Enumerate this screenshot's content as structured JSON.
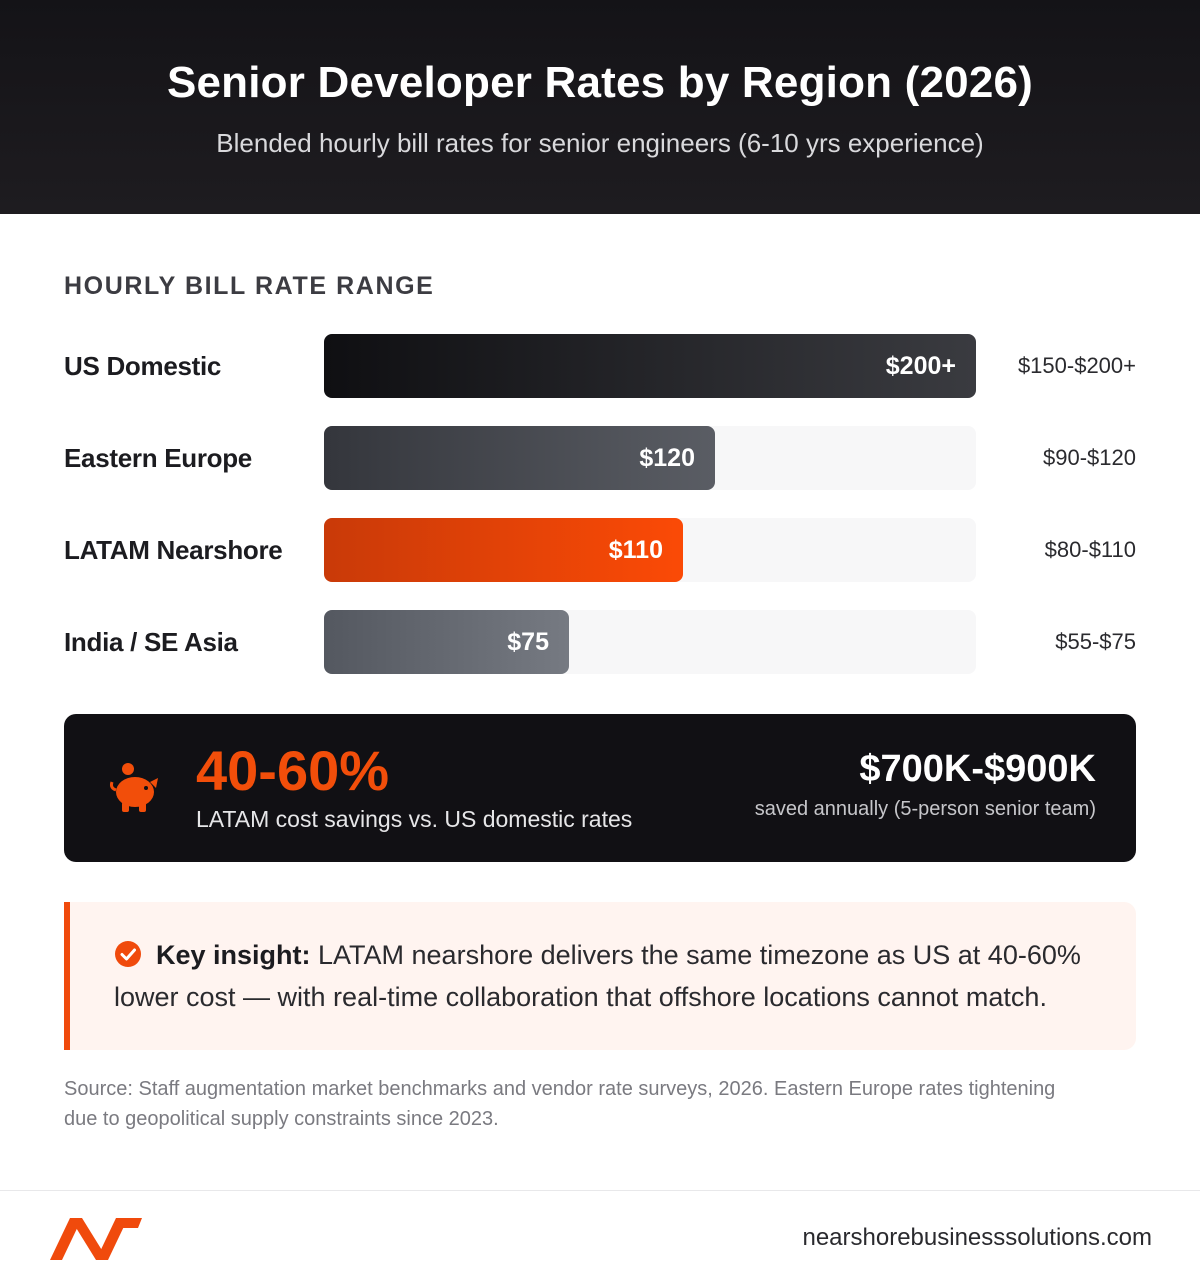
{
  "header": {
    "title": "Senior Developer Rates by Region (2026)",
    "subtitle": "Blended hourly bill rates for senior engineers (6-10 yrs experience)"
  },
  "chart_data": {
    "type": "bar",
    "title": "Senior Developer Rates by Region (2026)",
    "subtitle": "Blended hourly bill rates for senior engineers (6-10 yrs experience)",
    "section_label": "HOURLY BILL RATE RANGE",
    "orientation": "horizontal",
    "xlim": [
      0,
      200
    ],
    "categories": [
      "US Domestic",
      "Eastern Europe",
      "LATAM Nearshore",
      "India / SE Asia"
    ],
    "values": [
      200,
      120,
      110,
      75
    ],
    "value_labels": [
      "$200+",
      "$120",
      "$110",
      "$75"
    ],
    "ranges": [
      "$150-$200+",
      "$90-$120",
      "$80-$110",
      "$55-$75"
    ],
    "colors": [
      [
        "#0f0f12",
        "#3a3b40"
      ],
      [
        "#34363c",
        "#5a5d64"
      ],
      [
        "#c93a08",
        "#fb4a06"
      ],
      [
        "#545860",
        "#767a82"
      ]
    ]
  },
  "savings": {
    "percent": "40-60%",
    "percent_caption": "LATAM cost savings vs. US domestic rates",
    "amount": "$700K-$900K",
    "amount_caption": "saved annually (5-person senior team)"
  },
  "insight": {
    "lead": "Key insight:",
    "text": " LATAM nearshore delivers the same timezone as US at 40-60% lower cost — with real-time collaboration that offshore locations cannot match."
  },
  "source": "Source: Staff augmentation market benchmarks and vendor rate surveys, 2026. Eastern Europe rates tightening due to geopolitical supply constraints since 2023.",
  "footer": {
    "site": "nearshorebusinesssolutions.com"
  },
  "accent_color": "#f04a0c",
  "icons": [
    "piggy-bank-icon",
    "check-circle-icon",
    "brand-logo"
  ]
}
